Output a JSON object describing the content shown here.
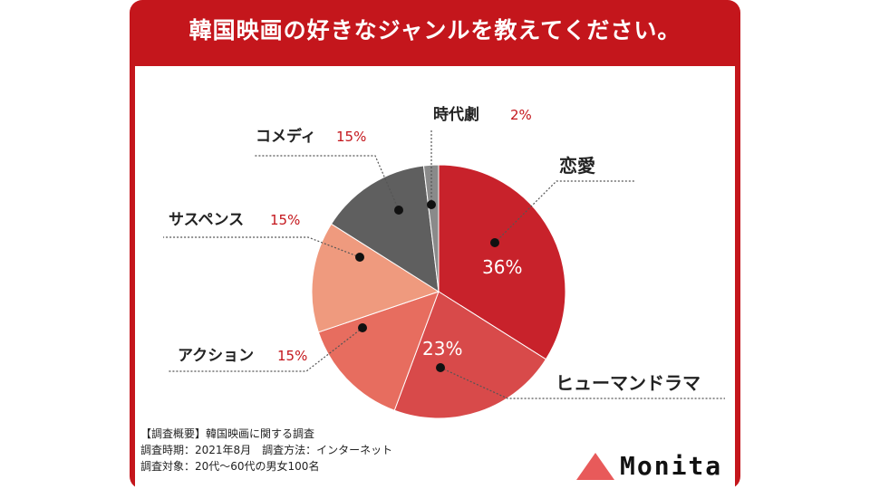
{
  "header": {
    "title": "韓国映画の好きなジャンルを教えてください。"
  },
  "colors": {
    "frame": "#c4161c",
    "slices": [
      "#c8222b",
      "#d84a4a",
      "#e76d5f",
      "#ef9a7e",
      "#5f5f5f",
      "#8a8a8a"
    ]
  },
  "chart_data": {
    "type": "pie",
    "title": "韓国映画の好きなジャンルを教えてください。",
    "categories": [
      "恋愛",
      "ヒューマンドラマ",
      "アクション",
      "サスペンス",
      "コメディ",
      "時代劇"
    ],
    "values": [
      36,
      23,
      15,
      15,
      15,
      2
    ],
    "unit": "%",
    "value_labels": [
      "36%",
      "23%",
      "15%",
      "15%",
      "15%",
      "2%"
    ]
  },
  "footer": {
    "line1": "【調査概要】韓国映画に関する調査",
    "line2": "調査時期：2021年8月　調査方法：インターネット",
    "line3": "調査対象：20代〜60代の男女100名"
  },
  "brand": {
    "name": "Monita"
  }
}
